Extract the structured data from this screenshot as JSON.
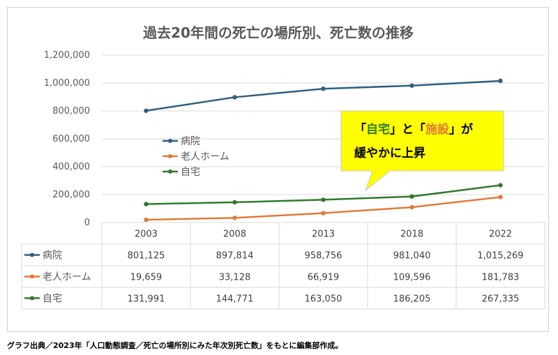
{
  "chart_data": {
    "type": "line",
    "title": "過去20年間の死亡の場所別、死亡数の推移",
    "categories": [
      "2003",
      "2008",
      "2013",
      "2018",
      "2022"
    ],
    "ylim": [
      0,
      1200000
    ],
    "y_ticks": [
      "1,200,000",
      "1,000,000",
      "800,000",
      "600,000",
      "400,000",
      "200,000",
      "0"
    ],
    "grid": true,
    "legend_position": "left-center",
    "series": [
      {
        "name": "病院",
        "color": "#2e5f7f",
        "values": [
          801125,
          897814,
          958756,
          981040,
          1015269
        ],
        "labels": [
          "801,125",
          "897,814",
          "958,756",
          "981,040",
          "1,015,269"
        ]
      },
      {
        "name": "老人ホーム",
        "color": "#e07b39",
        "values": [
          19659,
          33128,
          66919,
          109596,
          181783
        ],
        "labels": [
          "19,659",
          "33,128",
          "66,919",
          "109,596",
          "181,783"
        ]
      },
      {
        "name": "自宅",
        "color": "#2f7a2a",
        "values": [
          131991,
          144771,
          163050,
          186205,
          267335
        ],
        "labels": [
          "131,991",
          "144,771",
          "163,050",
          "186,205",
          "267,335"
        ]
      }
    ],
    "annotation": {
      "line1": [
        {
          "text": "「",
          "color": "#000000"
        },
        {
          "text": "自宅",
          "color": "#2f7a2a"
        },
        {
          "text": "」と",
          "color": "#000000"
        },
        {
          "text": "「",
          "color": "#000000"
        },
        {
          "text": "施設",
          "color": "#e07b39"
        },
        {
          "text": "」が",
          "color": "#000000"
        }
      ],
      "line2": "緩やかに上昇",
      "background": "#ffff00"
    }
  },
  "source_note": "グラフ出典／2023年「人口動態調査／死亡の場所別にみた年次別死亡数」をもとに編集部作成。"
}
